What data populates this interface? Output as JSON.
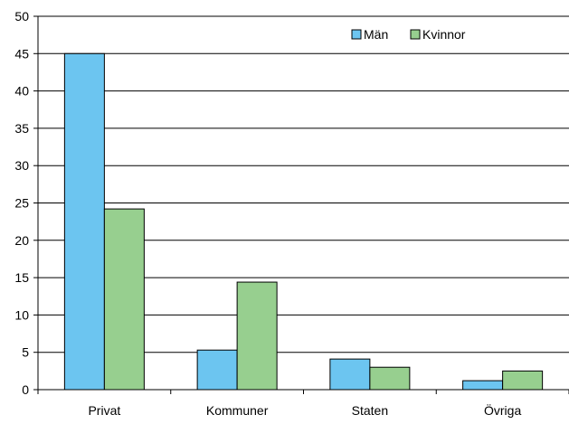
{
  "chart_data": {
    "type": "bar",
    "categories": [
      "Privat",
      "Kommuner",
      "Staten",
      "Övriga"
    ],
    "series": [
      {
        "name": "Män",
        "values": [
          45.0,
          5.3,
          4.1,
          1.2
        ],
        "color": "#6cc5f0"
      },
      {
        "name": "Kvinnor",
        "values": [
          24.2,
          14.4,
          3.0,
          2.5
        ],
        "color": "#97cf8f"
      }
    ],
    "ylim": [
      0,
      50
    ],
    "yticks": [
      0,
      5,
      10,
      15,
      20,
      25,
      30,
      35,
      40,
      45,
      50
    ],
    "grid": true,
    "legend_position": "top-right",
    "title": "",
    "xlabel": "",
    "ylabel": ""
  }
}
